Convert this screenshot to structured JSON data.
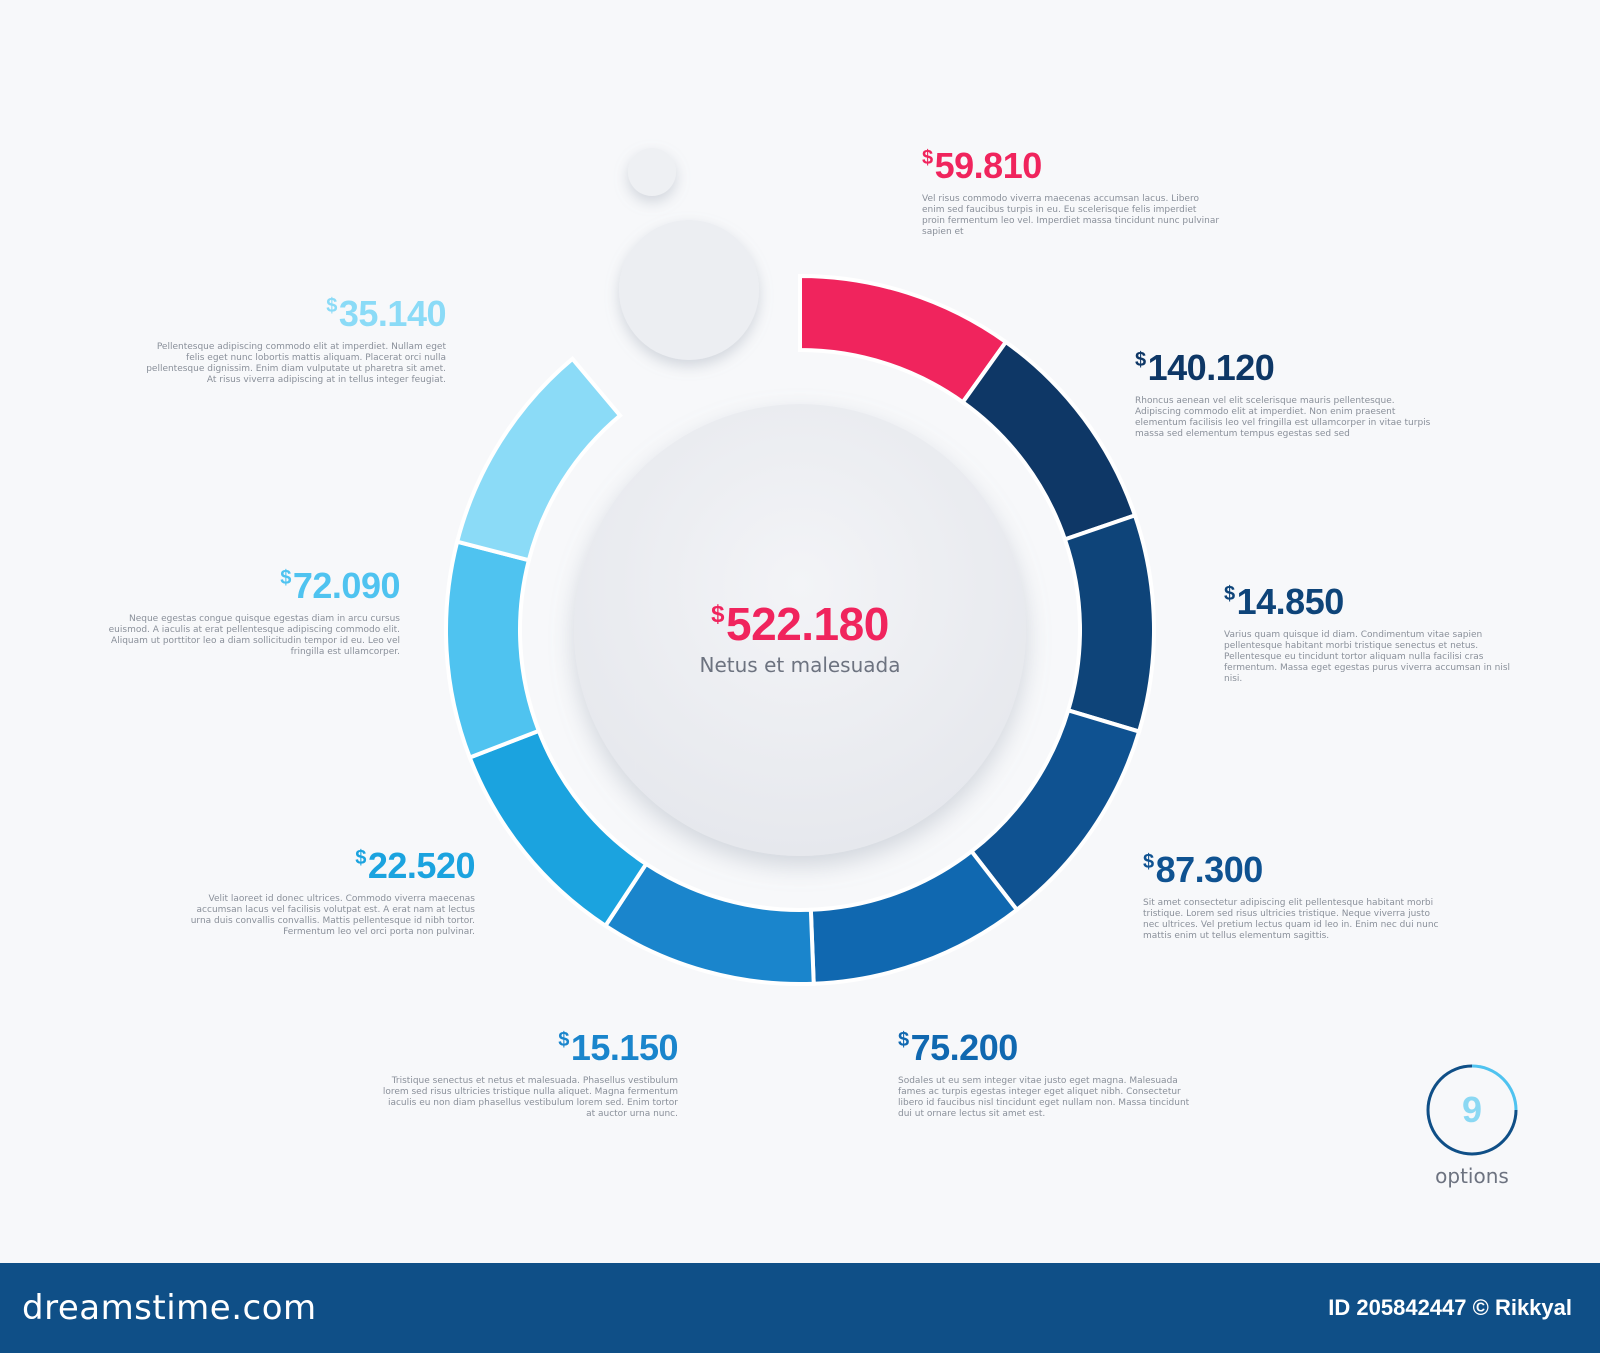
{
  "chart_data": {
    "type": "donut",
    "center": {
      "currency": "$",
      "value": "522.180",
      "caption": "Netus et malesuada"
    },
    "segments": [
      {
        "currency": "$",
        "value": "59.810",
        "color": "#f0245d",
        "text": "Vel risus commodo viverra maecenas accumsan lacus. Libero enim sed faucibus turpis in eu. Eu scelerisque felis imperdiet proin fermentum leo vel. Imperdiet massa tincidunt nunc pulvinar sapien et"
      },
      {
        "currency": "$",
        "value": "140.120",
        "color": "#0e3766",
        "text": "Rhoncus aenean vel elit scelerisque mauris pellentesque. Adipiscing commodo elit at imperdiet. Non enim praesent elementum facilisis leo vel fringilla est ullamcorper in vitae turpis massa sed elementum tempus egestas sed sed"
      },
      {
        "currency": "$",
        "value": "14.850",
        "color": "#0e4479",
        "text": "Varius quam quisque id diam. Condimentum vitae sapien pellentesque habitant morbi tristique senectus et netus. Pellentesque eu tincidunt tortor aliquam nulla facilisi cras fermentum. Massa eget egestas purus viverra accumsan in nisl nisi."
      },
      {
        "currency": "$",
        "value": "87.300",
        "color": "#0f5291",
        "text": "Sit amet consectetur adipiscing elit pellentesque habitant morbi tristique. Lorem sed risus ultricies tristique. Neque viverra justo nec ultrices. Vel pretium lectus quam id leo in. Enim nec dui nunc mattis enim ut tellus elementum sagittis."
      },
      {
        "currency": "$",
        "value": "75.200",
        "color": "#1068b0",
        "text": "Sodales ut eu sem integer vitae justo eget magna. Malesuada fames ac turpis egestas integer eget aliquet nibh. Consectetur libero id faucibus nisl tincidunt eget nullam non. Massa tincidunt dui ut ornare lectus sit amet est."
      },
      {
        "currency": "$",
        "value": "15.150",
        "color": "#1a85cc",
        "text": "Tristique senectus et netus et malesuada. Phasellus vestibulum lorem sed risus ultricies tristique nulla aliquet. Magna fermentum iaculis eu non diam phasellus vestibulum lorem sed. Enim tortor at auctor urna nunc."
      },
      {
        "currency": "$",
        "value": "22.520",
        "color": "#1ba3df",
        "text": "Velit laoreet id donec ultrices. Commodo viverra maecenas accumsan lacus vel facilisis volutpat est. A erat nam at lectus urna duis convallis convallis. Mattis pellentesque id nibh tortor. Fermentum leo vel orci porta non pulvinar."
      },
      {
        "currency": "$",
        "value": "72.090",
        "color": "#4fc3f0",
        "text": "Neque egestas congue quisque egestas diam in arcu cursus euismod. A iaculis at erat pellentesque adipiscing commodo elit. Aliquam ut porttitor leo a diam sollicitudin tempor id eu. Leo vel fringilla est ullamcorper."
      },
      {
        "currency": "$",
        "value": "35.140",
        "color": "#8bdbf7",
        "text": "Pellentesque adipiscing commodo elit at imperdiet. Nullam eget felis eget nunc lobortis mattis aliquam. Placerat orci nulla pellentesque dignissim. Enim diam vulputate ut pharetra sit amet. At risus viverra adipiscing at in tellus integer feugiat."
      }
    ]
  },
  "options_badge": {
    "number": "9",
    "caption": "options"
  },
  "footer": {
    "logo": "dreamstime.com",
    "id_text": "ID 205842447 © Rikkyal"
  }
}
